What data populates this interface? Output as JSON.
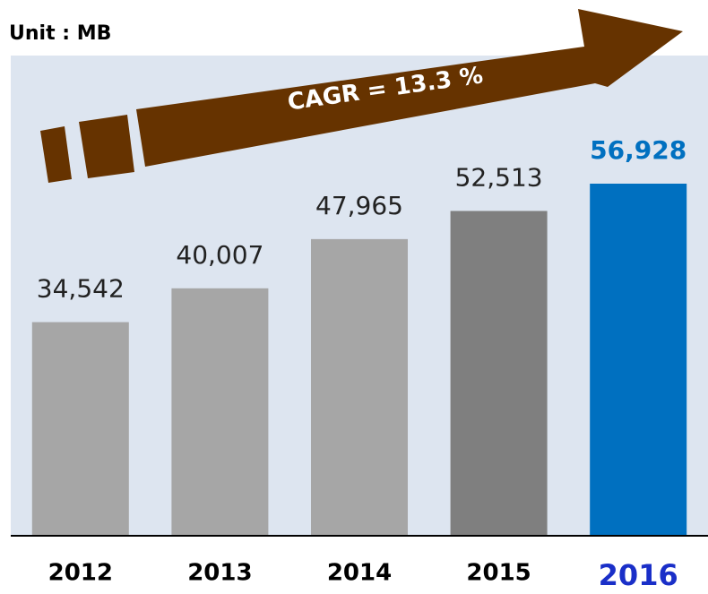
{
  "chart_data": {
    "type": "bar",
    "title": "Unit : MB",
    "annotation": "CAGR = 13.3 %",
    "categories": [
      "2012",
      "2013",
      "2014",
      "2015",
      "2016"
    ],
    "values": [
      34542,
      40007,
      47965,
      52513,
      56928
    ],
    "value_labels": [
      "34,542",
      "40,007",
      "47,965",
      "52,513",
      "56,928"
    ],
    "colors": [
      "#a6a6a6",
      "#a6a6a6",
      "#a6a6a6",
      "#7f7f7f",
      "#0070c0"
    ],
    "highlight": [
      false,
      false,
      false,
      false,
      true
    ]
  }
}
